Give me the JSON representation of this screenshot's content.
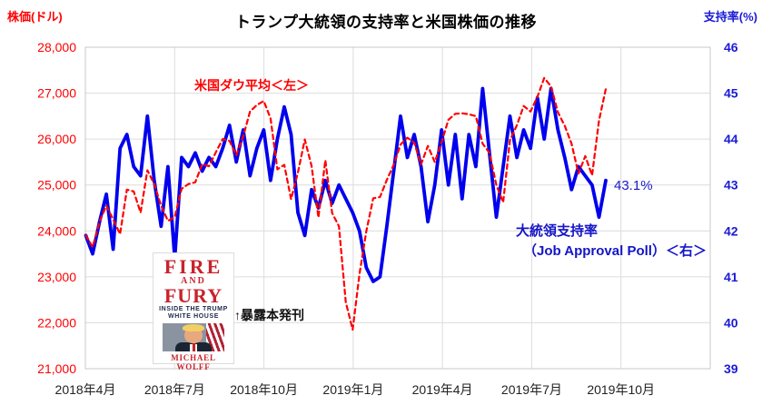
{
  "header": {
    "title": "トランプ大統領の支持率と米国株価の推移"
  },
  "chart_data": {
    "type": "line",
    "title": "トランプ大統領の支持率と米国株価の推移",
    "x_start": "2018-04",
    "x_end": "2019-09",
    "x_interval": "weekly",
    "x_tick_labels": [
      "2018年4月",
      "2018年7月",
      "2018年10月",
      "2019年1月",
      "2019年4月",
      "2019年7月",
      "2019年10月"
    ],
    "grid": true,
    "left_axis": {
      "label": "株価(ドル)",
      "min": 21000,
      "max": 28000,
      "tick_step": 1000,
      "tick_labels": [
        "28,000",
        "27,000",
        "26,000",
        "25,000",
        "24,000",
        "23,000",
        "22,000",
        "21,000"
      ],
      "color": "#ff0000"
    },
    "right_axis": {
      "label": "支持率(%)",
      "min": 39,
      "max": 46,
      "tick_step": 1,
      "tick_labels": [
        "46",
        "45",
        "44",
        "43",
        "42",
        "41",
        "40",
        "39"
      ],
      "color": "#1a1ad6"
    },
    "series": [
      {
        "name": "米国ダウ平均＜左＞",
        "axis": "left",
        "color": "#ff0000",
        "line_style": "dashed",
        "values": [
          23900,
          23650,
          24200,
          24550,
          24250,
          23930,
          24900,
          24860,
          24400,
          25320,
          25020,
          24550,
          24220,
          24300,
          24920,
          25020,
          25060,
          25450,
          25410,
          25710,
          26000,
          25960,
          25650,
          26060,
          26600,
          26740,
          26830,
          26450,
          25340,
          25440,
          24690,
          25270,
          25990,
          25410,
          24290,
          25540,
          24390,
          24100,
          22450,
          21850,
          23060,
          23990,
          24710,
          24740,
          25110,
          25440,
          25880,
          26030,
          25920,
          25450,
          25850,
          25500,
          25930,
          26420,
          26550,
          26560,
          26540,
          26500,
          25900,
          25700,
          25000,
          24620,
          25980,
          26300,
          26720,
          26600,
          26920,
          27330,
          27150,
          26580,
          26290,
          25900,
          25250,
          25630,
          25210,
          26400,
          27090
        ]
      },
      {
        "name": "大統領支持率（Job Approval Poll）＜右＞",
        "axis": "right",
        "color": "#0000ee",
        "line_style": "solid",
        "values": [
          41.9,
          41.5,
          42.2,
          42.8,
          41.6,
          43.8,
          44.1,
          43.4,
          43.2,
          44.5,
          43.1,
          42.1,
          43.4,
          41.4,
          43.6,
          43.4,
          43.7,
          43.3,
          43.6,
          43.4,
          43.8,
          44.3,
          43.5,
          44.2,
          43.2,
          43.8,
          44.2,
          43.1,
          44.0,
          44.7,
          44.1,
          42.4,
          41.9,
          42.9,
          42.5,
          43.1,
          42.6,
          43.0,
          42.7,
          42.4,
          42.0,
          41.2,
          40.9,
          41.0,
          42.1,
          43.3,
          44.5,
          43.6,
          44.1,
          43.4,
          42.2,
          43.0,
          44.2,
          43.0,
          44.1,
          42.7,
          44.1,
          43.4,
          45.1,
          43.7,
          42.3,
          43.4,
          44.5,
          43.6,
          44.2,
          43.8,
          44.9,
          44.0,
          45.1,
          44.2,
          43.6,
          42.9,
          43.4,
          43.2,
          43.0,
          42.3,
          43.1
        ]
      }
    ],
    "annotations": {
      "dow_label": "米国ダウ平均＜左＞",
      "approval_label_line1": "大統領支持率",
      "approval_label_line2": "（Job Approval Poll）＜右＞",
      "last_value_label": "43.1%",
      "book_note": "↑暴露本発刊"
    }
  },
  "book_cover": {
    "title_line1": "FIRE",
    "title_line2": "AND",
    "title_line3": "FURY",
    "subtitle_line1": "INSIDE THE TRUMP",
    "subtitle_line2": "WHITE HOUSE",
    "author": "MICHAEL WOLFF"
  },
  "colors": {
    "dow_line": "#ff0000",
    "approval_line": "#0000ee",
    "grid": "#dcdcdc",
    "plot_border": "#c8c8c8",
    "left_tick_text": "#ff0000",
    "right_tick_text": "#1a1ad6",
    "x_tick_text": "#222222"
  }
}
